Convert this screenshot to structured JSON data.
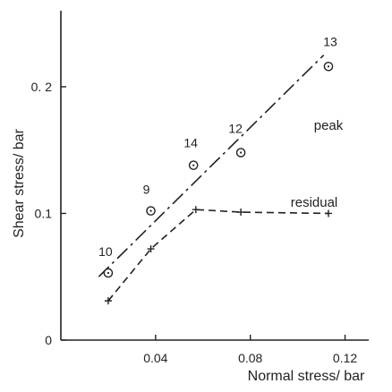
{
  "chart_data": {
    "type": "scatter",
    "title": "",
    "xlabel": "Normal stress/ bar",
    "ylabel": "Shear stress/ bar",
    "xlim": [
      0,
      0.13
    ],
    "ylim": [
      0,
      0.26
    ],
    "x_ticks": [
      {
        "value": 0.04,
        "label": "0.04"
      },
      {
        "value": 0.08,
        "label": "0.08"
      },
      {
        "value": 0.12,
        "label": "0.12"
      }
    ],
    "y_ticks": [
      {
        "value": 0,
        "label": "0"
      },
      {
        "value": 0.1,
        "label": "0.1"
      },
      {
        "value": 0.2,
        "label": "0. 2"
      }
    ],
    "points": [
      {
        "label": "10",
        "x": 0.02,
        "y": 0.053
      },
      {
        "label": "9",
        "x": 0.038,
        "y": 0.102
      },
      {
        "label": "14",
        "x": 0.056,
        "y": 0.138
      },
      {
        "label": "12",
        "x": 0.076,
        "y": 0.148
      },
      {
        "label": "13",
        "x": 0.113,
        "y": 0.216
      }
    ],
    "series": [
      {
        "name": "peak",
        "style": "dash-dot",
        "x": [
          0.016,
          0.111
        ],
        "y": [
          0.05,
          0.225
        ]
      },
      {
        "name": "residual",
        "style": "dashed",
        "x": [
          0.02,
          0.038,
          0.057,
          0.076,
          0.113
        ],
        "y": [
          0.031,
          0.072,
          0.103,
          0.101,
          0.1
        ]
      }
    ],
    "grid": false,
    "legend": "none",
    "colors": {
      "ink": "#222222"
    }
  }
}
